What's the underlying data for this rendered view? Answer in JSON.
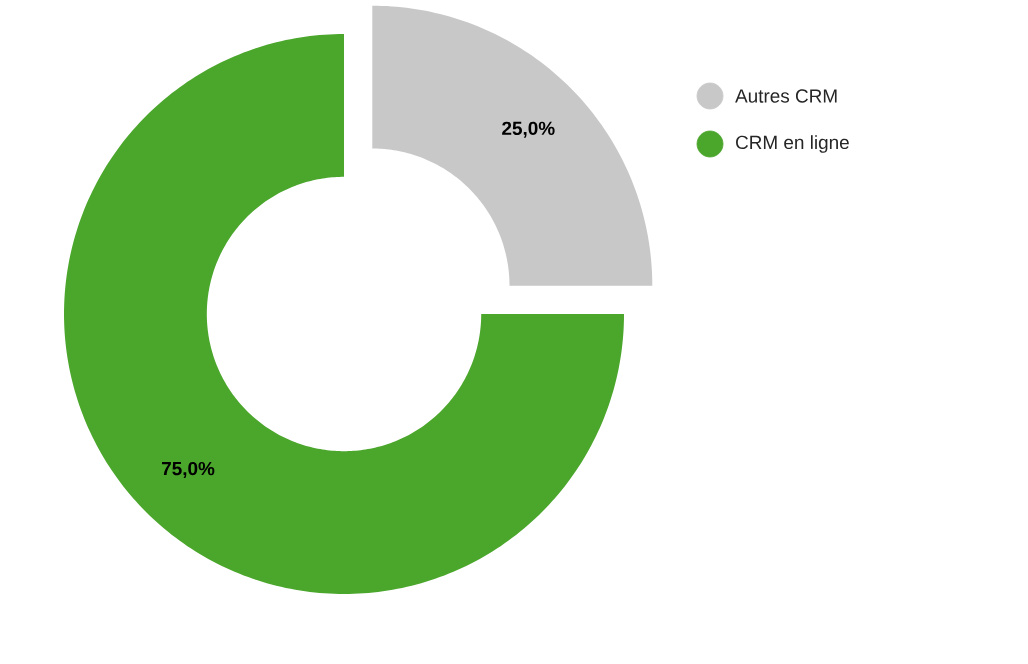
{
  "chart_data": {
    "type": "donut",
    "categories": [
      "Autres CRM",
      "CRM en ligne"
    ],
    "values": [
      25,
      75
    ],
    "colors": [
      "#c8c8c8",
      "#4ba62c"
    ],
    "value_labels": [
      "25,0%",
      "75,0%"
    ],
    "legend": "top right"
  }
}
